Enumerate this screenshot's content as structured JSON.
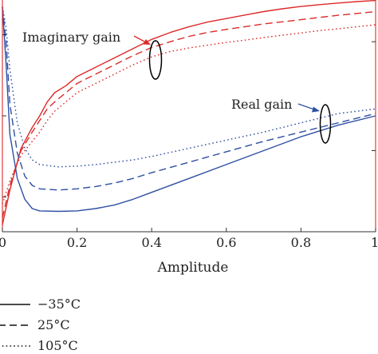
{
  "chart_data": {
    "type": "line",
    "xlabel": "Amplitude",
    "xlim": [
      0,
      1
    ],
    "xticks": [
      "0",
      "0.2",
      "0.4",
      "0.6",
      "0.8",
      "1"
    ],
    "ylim": [
      0,
      1
    ],
    "annotations": [
      {
        "text": "Imaginary gain"
      },
      {
        "text": "Real gain"
      }
    ],
    "legend": {
      "placement": "bottom-left",
      "entries": [
        {
          "label": "−35°C",
          "style": "solid"
        },
        {
          "label": "25°C",
          "style": "dashed"
        },
        {
          "label": "105°C",
          "style": "dotted"
        }
      ]
    },
    "colors": {
      "imaginary": "#dd2a2a",
      "real": "#2f4fa3",
      "axes": "#333333",
      "ellipse": "#000000"
    },
    "series": [
      {
        "group": "Imaginary gain",
        "temp": "−35°C",
        "style": "solid",
        "color": "#dd2a2a",
        "x": [
          0,
          0.02,
          0.05,
          0.08,
          0.1,
          0.12,
          0.14,
          0.17,
          0.2,
          0.25,
          0.3,
          0.35,
          0.4,
          0.45,
          0.5,
          0.55,
          0.6,
          0.65,
          0.7,
          0.75,
          0.8,
          0.85,
          0.9,
          0.95,
          1.0
        ],
        "y": [
          0.03,
          0.18,
          0.36,
          0.45,
          0.5,
          0.56,
          0.6,
          0.63,
          0.67,
          0.71,
          0.75,
          0.79,
          0.83,
          0.86,
          0.885,
          0.905,
          0.92,
          0.935,
          0.95,
          0.962,
          0.972,
          0.98,
          0.987,
          0.993,
          0.998
        ]
      },
      {
        "group": "Imaginary gain",
        "temp": "25°C",
        "style": "dashed",
        "color": "#dd2a2a",
        "x": [
          0,
          0.02,
          0.05,
          0.08,
          0.1,
          0.12,
          0.14,
          0.17,
          0.2,
          0.25,
          0.3,
          0.35,
          0.4,
          0.45,
          0.5,
          0.55,
          0.6,
          0.65,
          0.7,
          0.75,
          0.8,
          0.85,
          0.9,
          0.95,
          1.0
        ],
        "y": [
          0.06,
          0.2,
          0.35,
          0.43,
          0.48,
          0.53,
          0.56,
          0.6,
          0.64,
          0.68,
          0.72,
          0.76,
          0.795,
          0.82,
          0.843,
          0.86,
          0.873,
          0.885,
          0.897,
          0.906,
          0.915,
          0.925,
          0.934,
          0.942,
          0.95
        ]
      },
      {
        "group": "Imaginary gain",
        "temp": "105°C",
        "style": "dotted",
        "color": "#dd2a2a",
        "x": [
          0,
          0.02,
          0.05,
          0.08,
          0.1,
          0.12,
          0.14,
          0.17,
          0.2,
          0.25,
          0.3,
          0.35,
          0.4,
          0.45,
          0.5,
          0.55,
          0.6,
          0.65,
          0.7,
          0.75,
          0.8,
          0.85,
          0.9,
          0.95,
          1.0
        ],
        "y": [
          0.12,
          0.22,
          0.33,
          0.39,
          0.43,
          0.48,
          0.52,
          0.56,
          0.6,
          0.64,
          0.68,
          0.72,
          0.755,
          0.778,
          0.793,
          0.805,
          0.817,
          0.827,
          0.838,
          0.848,
          0.858,
          0.868,
          0.876,
          0.885,
          0.893
        ]
      },
      {
        "group": "Real gain",
        "temp": "−35°C",
        "style": "solid",
        "color": "#2f4fa3",
        "x": [
          0,
          0.01,
          0.02,
          0.04,
          0.06,
          0.08,
          0.1,
          0.15,
          0.2,
          0.25,
          0.3,
          0.35,
          0.4,
          0.5,
          0.6,
          0.7,
          0.8,
          0.9,
          1.0
        ],
        "y": [
          0.97,
          0.72,
          0.42,
          0.23,
          0.14,
          0.1,
          0.09,
          0.088,
          0.09,
          0.1,
          0.115,
          0.14,
          0.17,
          0.23,
          0.29,
          0.35,
          0.41,
          0.46,
          0.5
        ]
      },
      {
        "group": "Real gain",
        "temp": "25°C",
        "style": "dashed",
        "color": "#2f4fa3",
        "x": [
          0,
          0.01,
          0.02,
          0.04,
          0.06,
          0.08,
          0.1,
          0.15,
          0.2,
          0.25,
          0.3,
          0.35,
          0.4,
          0.5,
          0.6,
          0.7,
          0.8,
          0.9,
          1.0
        ],
        "y": [
          0.97,
          0.82,
          0.55,
          0.34,
          0.24,
          0.2,
          0.185,
          0.18,
          0.185,
          0.195,
          0.21,
          0.23,
          0.255,
          0.3,
          0.345,
          0.39,
          0.43,
          0.47,
          0.51
        ]
      },
      {
        "group": "Real gain",
        "temp": "105°C",
        "style": "dotted",
        "color": "#2f4fa3",
        "x": [
          0,
          0.01,
          0.02,
          0.04,
          0.06,
          0.08,
          0.1,
          0.15,
          0.2,
          0.25,
          0.3,
          0.35,
          0.4,
          0.5,
          0.6,
          0.7,
          0.8,
          0.9,
          1.0
        ],
        "y": [
          0.97,
          0.88,
          0.7,
          0.47,
          0.36,
          0.31,
          0.29,
          0.28,
          0.283,
          0.29,
          0.3,
          0.31,
          0.325,
          0.36,
          0.395,
          0.43,
          0.47,
          0.51,
          0.53
        ]
      }
    ]
  }
}
